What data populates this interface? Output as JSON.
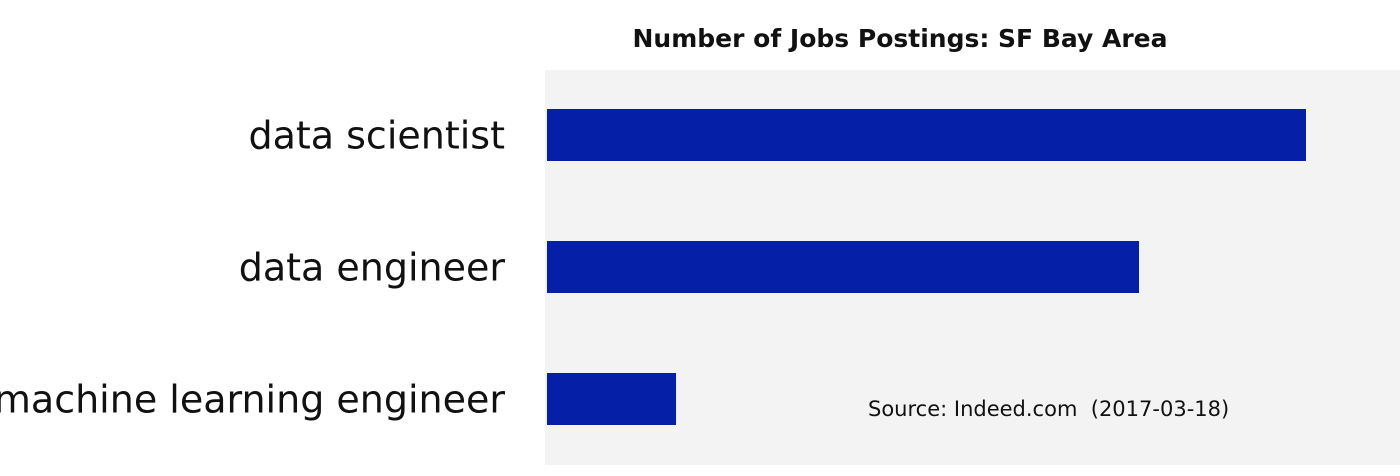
{
  "chart_data": {
    "type": "bar",
    "title": "Number of Jobs Postings: SF Bay Area",
    "categories": [
      "data scientist",
      "data engineer",
      "machine learning engineer"
    ],
    "values": [
      100,
      78,
      17
    ],
    "color": "#0520a6",
    "source": "Source: Indeed.com  (2017-03-18)"
  }
}
